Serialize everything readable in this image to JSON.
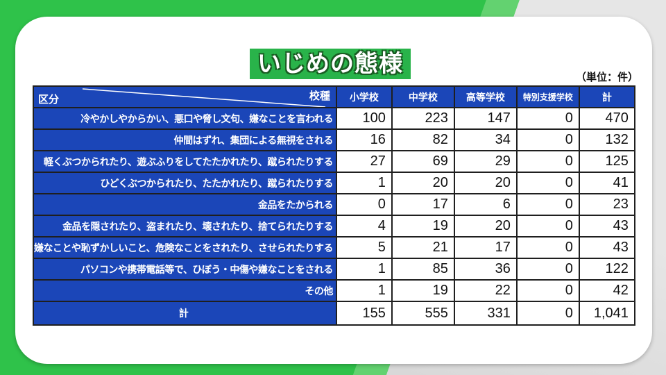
{
  "title": "いじめの態様",
  "unit": "（単位：件）",
  "chart_data": {
    "type": "table",
    "row_header_label": "区分",
    "column_header_label": "校種",
    "columns": [
      "小学校",
      "中学校",
      "高等学校",
      "特別支援学校",
      "計"
    ],
    "rows": [
      {
        "label": "冷やかしやからかい、悪口や脅し文句、嫌なことを言われる",
        "values": [
          "100",
          "223",
          "147",
          "0",
          "470"
        ]
      },
      {
        "label": "仲間はずれ、集団による無視をされる",
        "values": [
          "16",
          "82",
          "34",
          "0",
          "132"
        ]
      },
      {
        "label": "軽くぶつかられたり、遊ぶふりをしてたたかれたり、蹴られたりする",
        "values": [
          "27",
          "69",
          "29",
          "0",
          "125"
        ]
      },
      {
        "label": "ひどくぶつかられたり、たたかれたり、蹴られたりする",
        "values": [
          "1",
          "20",
          "20",
          "0",
          "41"
        ]
      },
      {
        "label": "金品をたかられる",
        "values": [
          "0",
          "17",
          "6",
          "0",
          "23"
        ]
      },
      {
        "label": "金品を隠されたり、盗まれたり、壊されたり、捨てられたりする",
        "values": [
          "4",
          "19",
          "20",
          "0",
          "43"
        ]
      },
      {
        "label": "嫌なことや恥ずかしいこと、危険なことをされたり、させられたりする",
        "values": [
          "5",
          "21",
          "17",
          "0",
          "43"
        ]
      },
      {
        "label": "パソコンや携帯電話等で、ひぼう・中傷や嫌なことをされる",
        "values": [
          "1",
          "85",
          "36",
          "0",
          "122"
        ]
      },
      {
        "label": "その他",
        "values": [
          "1",
          "19",
          "22",
          "0",
          "42"
        ]
      }
    ],
    "total": {
      "label": "計",
      "values": [
        "155",
        "555",
        "331",
        "0",
        "1,041"
      ]
    }
  },
  "colors": {
    "header_blue": "#1b46b8",
    "title_green": "#29b34a",
    "background_green": "#2fc24a"
  }
}
